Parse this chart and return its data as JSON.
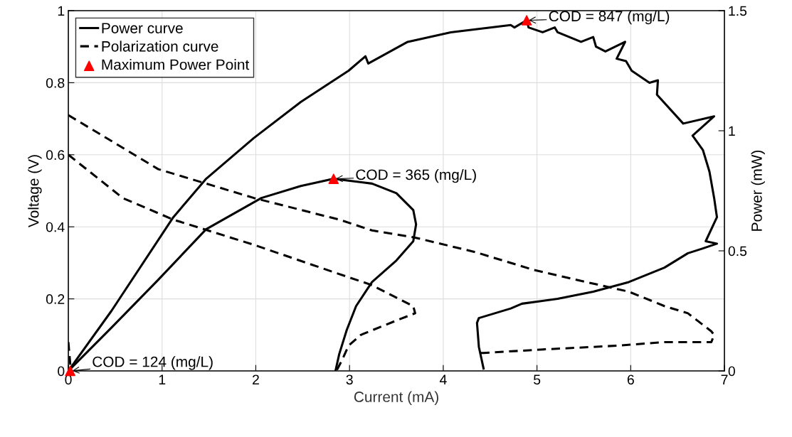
{
  "chart_data": {
    "type": "line",
    "xlabel": "Current (mA)",
    "ylabel": "Voltage (V)",
    "y2label": "Power (mW)",
    "xlim": [
      0,
      7
    ],
    "xticks": [
      0,
      1,
      2,
      3,
      4,
      5,
      6,
      7
    ],
    "ylim": [
      0,
      1
    ],
    "yticks": [
      0,
      0.2,
      0.4,
      0.6,
      0.8,
      1
    ],
    "y2lim": [
      0,
      1.5
    ],
    "y2ticks": [
      0,
      0.5,
      1,
      1.5
    ],
    "grid": true,
    "legend": "top left",
    "series": [
      {
        "name": "Power curve",
        "axis": "y2",
        "color": "#000000",
        "line_style": "solid",
        "x": [
          0,
          0.46,
          1.12,
          1.47,
          1.98,
          2.48,
          2.99,
          3.17,
          3.2,
          3.62,
          4.08,
          4.72,
          4.76,
          4.89,
          4.91,
          5.06,
          5.19,
          5.22,
          5.47,
          5.6,
          5.63,
          5.73,
          5.94,
          5.85,
          5.95,
          6.01,
          6.2,
          6.29,
          6.28,
          6.56,
          6.89,
          6.66,
          6.77,
          6.84,
          6.89,
          6.92,
          6.8,
          6.92,
          6.77,
          6.61,
          6.36,
          5.98,
          5.6,
          5.22,
          4.84,
          4.72,
          4.38,
          4.36,
          4.38,
          4.43
        ],
        "values": [
          0,
          0.25,
          0.64,
          0.8,
          0.97,
          1.12,
          1.25,
          1.31,
          1.28,
          1.37,
          1.41,
          1.44,
          1.43,
          1.46,
          1.43,
          1.41,
          1.43,
          1.41,
          1.37,
          1.39,
          1.35,
          1.33,
          1.37,
          1.3,
          1.29,
          1.25,
          1.2,
          1.21,
          1.15,
          1.03,
          1.06,
          0.98,
          0.92,
          0.83,
          0.72,
          0.64,
          0.54,
          0.53,
          0.51,
          0.49,
          0.43,
          0.37,
          0.33,
          0.3,
          0.28,
          0.26,
          0.22,
          0.2,
          0.1,
          0.01
        ]
      },
      {
        "axis": "y2",
        "color": "#000000",
        "line_style": "solid",
        "x": [
          0,
          0.46,
          0.96,
          1.47,
          2.06,
          2.48,
          2.83,
          3.24,
          3.5,
          3.68,
          3.71,
          3.68,
          3.5,
          3.24,
          3.07,
          2.97,
          2.89,
          2.85
        ],
        "values": [
          0,
          0.18,
          0.38,
          0.59,
          0.72,
          0.77,
          0.8,
          0.78,
          0.74,
          0.67,
          0.61,
          0.54,
          0.46,
          0.37,
          0.27,
          0.17,
          0.07,
          0
        ]
      },
      {
        "name": "Polarization curve",
        "color": "#000000",
        "line_style": "dashed",
        "x": [
          0,
          0.96,
          1.98,
          2.89,
          3.24,
          3.7,
          4.34,
          4.97,
          5.47,
          5.98,
          6.36,
          6.61,
          6.86,
          6.89,
          6.86,
          6.36,
          5.85,
          5.09,
          4.43,
          4.38
        ],
        "values": [
          0.71,
          0.56,
          0.48,
          0.42,
          0.39,
          0.37,
          0.33,
          0.28,
          0.25,
          0.22,
          0.18,
          0.16,
          0.11,
          0.1,
          0.08,
          0.08,
          0.07,
          0.06,
          0.05,
          0.05
        ]
      },
      {
        "color": "#000000",
        "line_style": "dashed",
        "x": [
          0,
          0.58,
          1.12,
          1.98,
          2.99,
          3.22,
          3.68,
          3.7,
          3.5,
          3.12,
          2.99,
          2.92,
          2.86
        ],
        "values": [
          0.6,
          0.48,
          0.42,
          0.35,
          0.26,
          0.24,
          0.18,
          0.16,
          0.14,
          0.1,
          0.07,
          0.03,
          0
        ]
      },
      {
        "color": "#000000",
        "line_style": "dashed",
        "x": [
          0,
          0.01,
          0.02,
          0.03
        ],
        "values": [
          0.08,
          0.05,
          0.02,
          0
        ]
      },
      {
        "name": "Maximum Power Point",
        "type": "scatter",
        "axis": "y2",
        "color": "#ff0000",
        "marker": "triangle",
        "x": [
          0.02,
          2.83,
          4.89
        ],
        "values": [
          0,
          0.8,
          1.46
        ]
      }
    ],
    "annotations": [
      {
        "text": "COD = 124 (mg/L)",
        "x": 0.02,
        "y": 0
      },
      {
        "text": "COD = 365 (mg/L)",
        "x": 2.83,
        "y": 0.533
      },
      {
        "text": "COD = 847 (mg/L)",
        "x": 4.89,
        "y": 0.973
      }
    ]
  }
}
